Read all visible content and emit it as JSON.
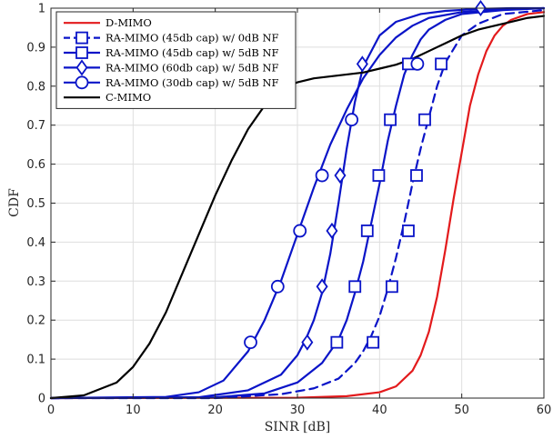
{
  "chart_data": {
    "type": "line",
    "title": "",
    "xlabel": "SINR [dB]",
    "ylabel": "CDF",
    "xlim": [
      0,
      60
    ],
    "ylim": [
      0,
      1
    ],
    "xticks": [
      0,
      10,
      20,
      30,
      40,
      50,
      60
    ],
    "yticks": [
      0,
      0.1,
      0.2,
      0.3,
      0.4,
      0.5,
      0.6,
      0.7,
      0.8,
      0.9,
      1
    ],
    "xtick_labels": [
      "0",
      "10",
      "20",
      "30",
      "40",
      "50",
      "60"
    ],
    "ytick_labels": [
      "0",
      "0.1",
      "0.2",
      "0.3",
      "0.4",
      "0.5",
      "0.6",
      "0.7",
      "0.8",
      "0.9",
      "1"
    ],
    "grid": true,
    "legend_position": "top-left",
    "series": [
      {
        "name": "D-MIMO",
        "color": "#e31a1c",
        "line": "solid",
        "marker": "none",
        "x": [
          0,
          30,
          36,
          40,
          42,
          44,
          45,
          46,
          47,
          48,
          49,
          50,
          51,
          52,
          53,
          54,
          55,
          56,
          58,
          60
        ],
        "y": [
          0,
          0.001,
          0.005,
          0.015,
          0.03,
          0.07,
          0.11,
          0.17,
          0.26,
          0.38,
          0.51,
          0.63,
          0.75,
          0.83,
          0.89,
          0.93,
          0.955,
          0.97,
          0.985,
          0.99
        ]
      },
      {
        "name": "RA-MIMO (45db cap) w/ 0dB NF",
        "color": "#0a14c8",
        "line": "dashed",
        "marker": "square",
        "x": [
          0,
          20,
          28,
          32,
          35,
          37,
          38,
          39,
          40,
          41,
          42,
          43,
          44,
          45,
          46,
          47,
          48,
          50,
          52,
          55,
          60
        ],
        "y": [
          0,
          0.0,
          0.01,
          0.025,
          0.05,
          0.09,
          0.12,
          0.16,
          0.21,
          0.28,
          0.36,
          0.45,
          0.55,
          0.64,
          0.72,
          0.8,
          0.86,
          0.93,
          0.96,
          0.985,
          0.995
        ],
        "marker_x": [
          39.2,
          41.5,
          43.5,
          44.5,
          45.5,
          47.5
        ],
        "marker_y": [
          0.143,
          0.286,
          0.429,
          0.571,
          0.714,
          0.857
        ]
      },
      {
        "name": "RA-MIMO (45db cap) w/ 5dB NF",
        "color": "#0a14c8",
        "line": "solid",
        "marker": "square",
        "x": [
          0,
          20,
          26,
          30,
          33,
          35,
          36,
          37,
          38,
          39,
          40,
          41,
          42,
          43,
          44,
          45,
          46,
          48,
          50,
          55,
          60
        ],
        "y": [
          0,
          0.002,
          0.012,
          0.04,
          0.09,
          0.15,
          0.2,
          0.27,
          0.35,
          0.45,
          0.55,
          0.66,
          0.75,
          0.83,
          0.88,
          0.92,
          0.945,
          0.97,
          0.985,
          0.995,
          1.0
        ],
        "marker_x": [
          34.8,
          37.0,
          38.5,
          39.9,
          41.3,
          43.5
        ],
        "marker_y": [
          0.143,
          0.286,
          0.429,
          0.571,
          0.714,
          0.857
        ]
      },
      {
        "name": "RA-MIMO (60db cap) w/ 5dB NF",
        "color": "#0a14c8",
        "line": "solid",
        "marker": "diamond",
        "x": [
          0,
          18,
          24,
          28,
          30,
          31,
          32,
          33,
          34,
          35,
          36,
          37,
          38,
          40,
          42,
          45,
          48,
          52,
          56,
          60
        ],
        "y": [
          0,
          0.002,
          0.02,
          0.06,
          0.11,
          0.15,
          0.2,
          0.27,
          0.37,
          0.5,
          0.64,
          0.76,
          0.85,
          0.93,
          0.965,
          0.985,
          0.993,
          0.998,
          1.0,
          1.0
        ],
        "marker_x": [
          31.2,
          33.0,
          34.2,
          35.2,
          37.9,
          52.3
        ],
        "marker_y": [
          0.143,
          0.286,
          0.429,
          0.571,
          0.857,
          1.0
        ]
      },
      {
        "name": "RA-MIMO (30db cap) w/ 5dB NF",
        "color": "#0a14c8",
        "line": "solid",
        "marker": "circle",
        "x": [
          0,
          14,
          18,
          21,
          24,
          26,
          28,
          30,
          32,
          34,
          36,
          38,
          40,
          42,
          44,
          46,
          50,
          55,
          60
        ],
        "y": [
          0,
          0.003,
          0.015,
          0.045,
          0.12,
          0.2,
          0.3,
          0.42,
          0.54,
          0.65,
          0.74,
          0.82,
          0.88,
          0.925,
          0.955,
          0.975,
          0.99,
          0.997,
          1.0
        ],
        "marker_x": [
          24.3,
          27.6,
          30.3,
          33.0,
          36.6,
          44.6
        ],
        "marker_y": [
          0.143,
          0.286,
          0.429,
          0.571,
          0.714,
          0.857
        ]
      },
      {
        "name": "C-MIMO",
        "color": "#000000",
        "line": "solid",
        "marker": "none",
        "x": [
          0,
          4,
          8,
          10,
          12,
          14,
          16,
          18,
          20,
          22,
          24,
          26,
          28,
          30,
          32,
          34,
          36,
          38,
          40,
          42,
          44,
          46,
          48,
          50,
          52,
          54,
          56,
          58,
          60
        ],
        "y": [
          0,
          0.007,
          0.04,
          0.08,
          0.14,
          0.22,
          0.32,
          0.42,
          0.52,
          0.61,
          0.69,
          0.75,
          0.79,
          0.81,
          0.82,
          0.825,
          0.83,
          0.835,
          0.845,
          0.855,
          0.87,
          0.89,
          0.91,
          0.93,
          0.945,
          0.955,
          0.965,
          0.975,
          0.98
        ]
      }
    ]
  }
}
